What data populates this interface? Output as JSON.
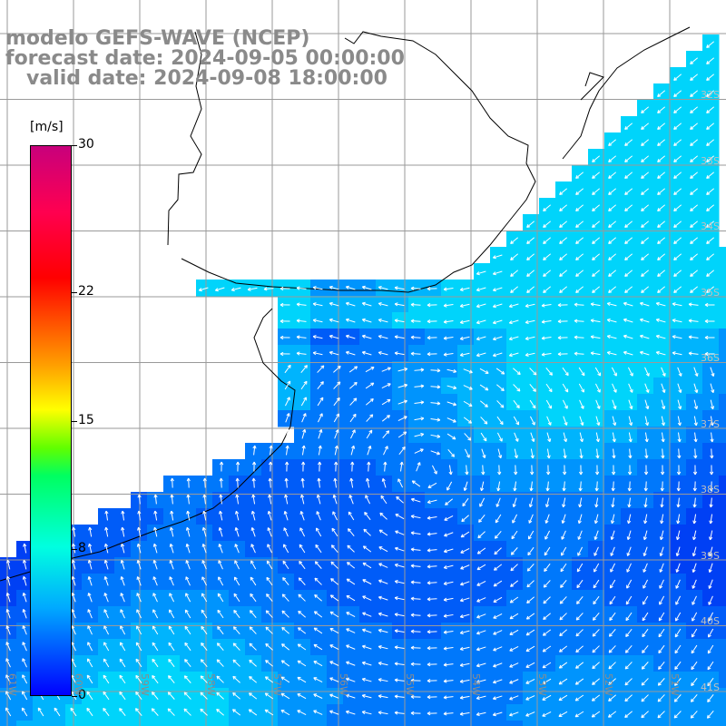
{
  "header": {
    "line1": "modelo GEFS-WAVE (NCEP)",
    "line2": "forecast date: 2024-09-05 00:00:00",
    "line3": "   valid date: 2024-09-08 18:00:00"
  },
  "colorbar": {
    "unit": "[m/s]",
    "min": 0,
    "max": 30,
    "ticks": [
      "30",
      "22",
      "15",
      "8",
      "0"
    ],
    "tick_values": [
      30,
      22,
      15,
      8,
      0
    ],
    "colors": [
      "#0000ff",
      "#00aaff",
      "#00ffe0",
      "#00ff60",
      "#ffff00",
      "#ff5000",
      "#ff0000",
      "#c8007c"
    ]
  },
  "map": {
    "land_color": "#ffffff",
    "grid_color": "#9a9a9a",
    "coast_color": "#000000",
    "field_colors": [
      "#0020ee",
      "#0040f4",
      "#005cf8",
      "#0078fb",
      "#0094fd",
      "#00b4fd",
      "#00d4fb"
    ],
    "vector_color": "#ffffff",
    "lat_labels": [
      "32S",
      "33S",
      "34S",
      "35S",
      "36S",
      "37S",
      "38S",
      "39S",
      "40S",
      "41S"
    ],
    "lon_labels": [
      "61W",
      "60W",
      "59W",
      "58W",
      "57W",
      "56W",
      "55W",
      "54W",
      "53W",
      "52W",
      "51W"
    ]
  }
}
